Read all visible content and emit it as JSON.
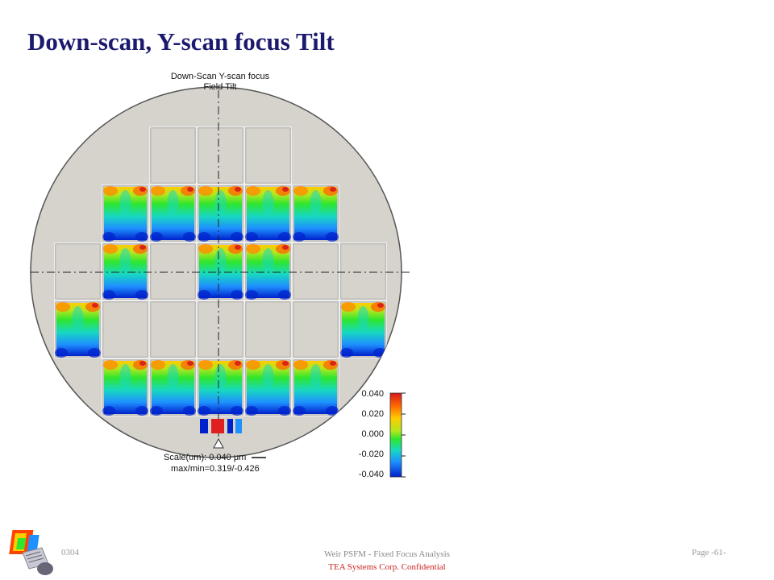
{
  "slide": {
    "title": "Down-scan, Y-scan focus Tilt"
  },
  "chart": {
    "title_line1": "Down-Scan Y-scan focus",
    "title_line2": "Field Tilt",
    "scale_label": "Scale(um): 0.040 μm",
    "maxmin_label": "max/min=0.319/-0.426",
    "colorbar": {
      "ticks": [
        "0.040",
        "0.020",
        "0.000",
        "-0.020",
        "-0.040"
      ],
      "colors": [
        "#d7191c",
        "#ff6600",
        "#ffcc00",
        "#b5e61d",
        "#2ee62e",
        "#18d9c0",
        "#1e90ff",
        "#0022cc"
      ]
    }
  },
  "footer": {
    "code": "0304",
    "title": "Weir PSFM - Fixed Focus Analysis",
    "confidential": "TEA Systems Corp. Confidential",
    "page": "Page -61-"
  }
}
